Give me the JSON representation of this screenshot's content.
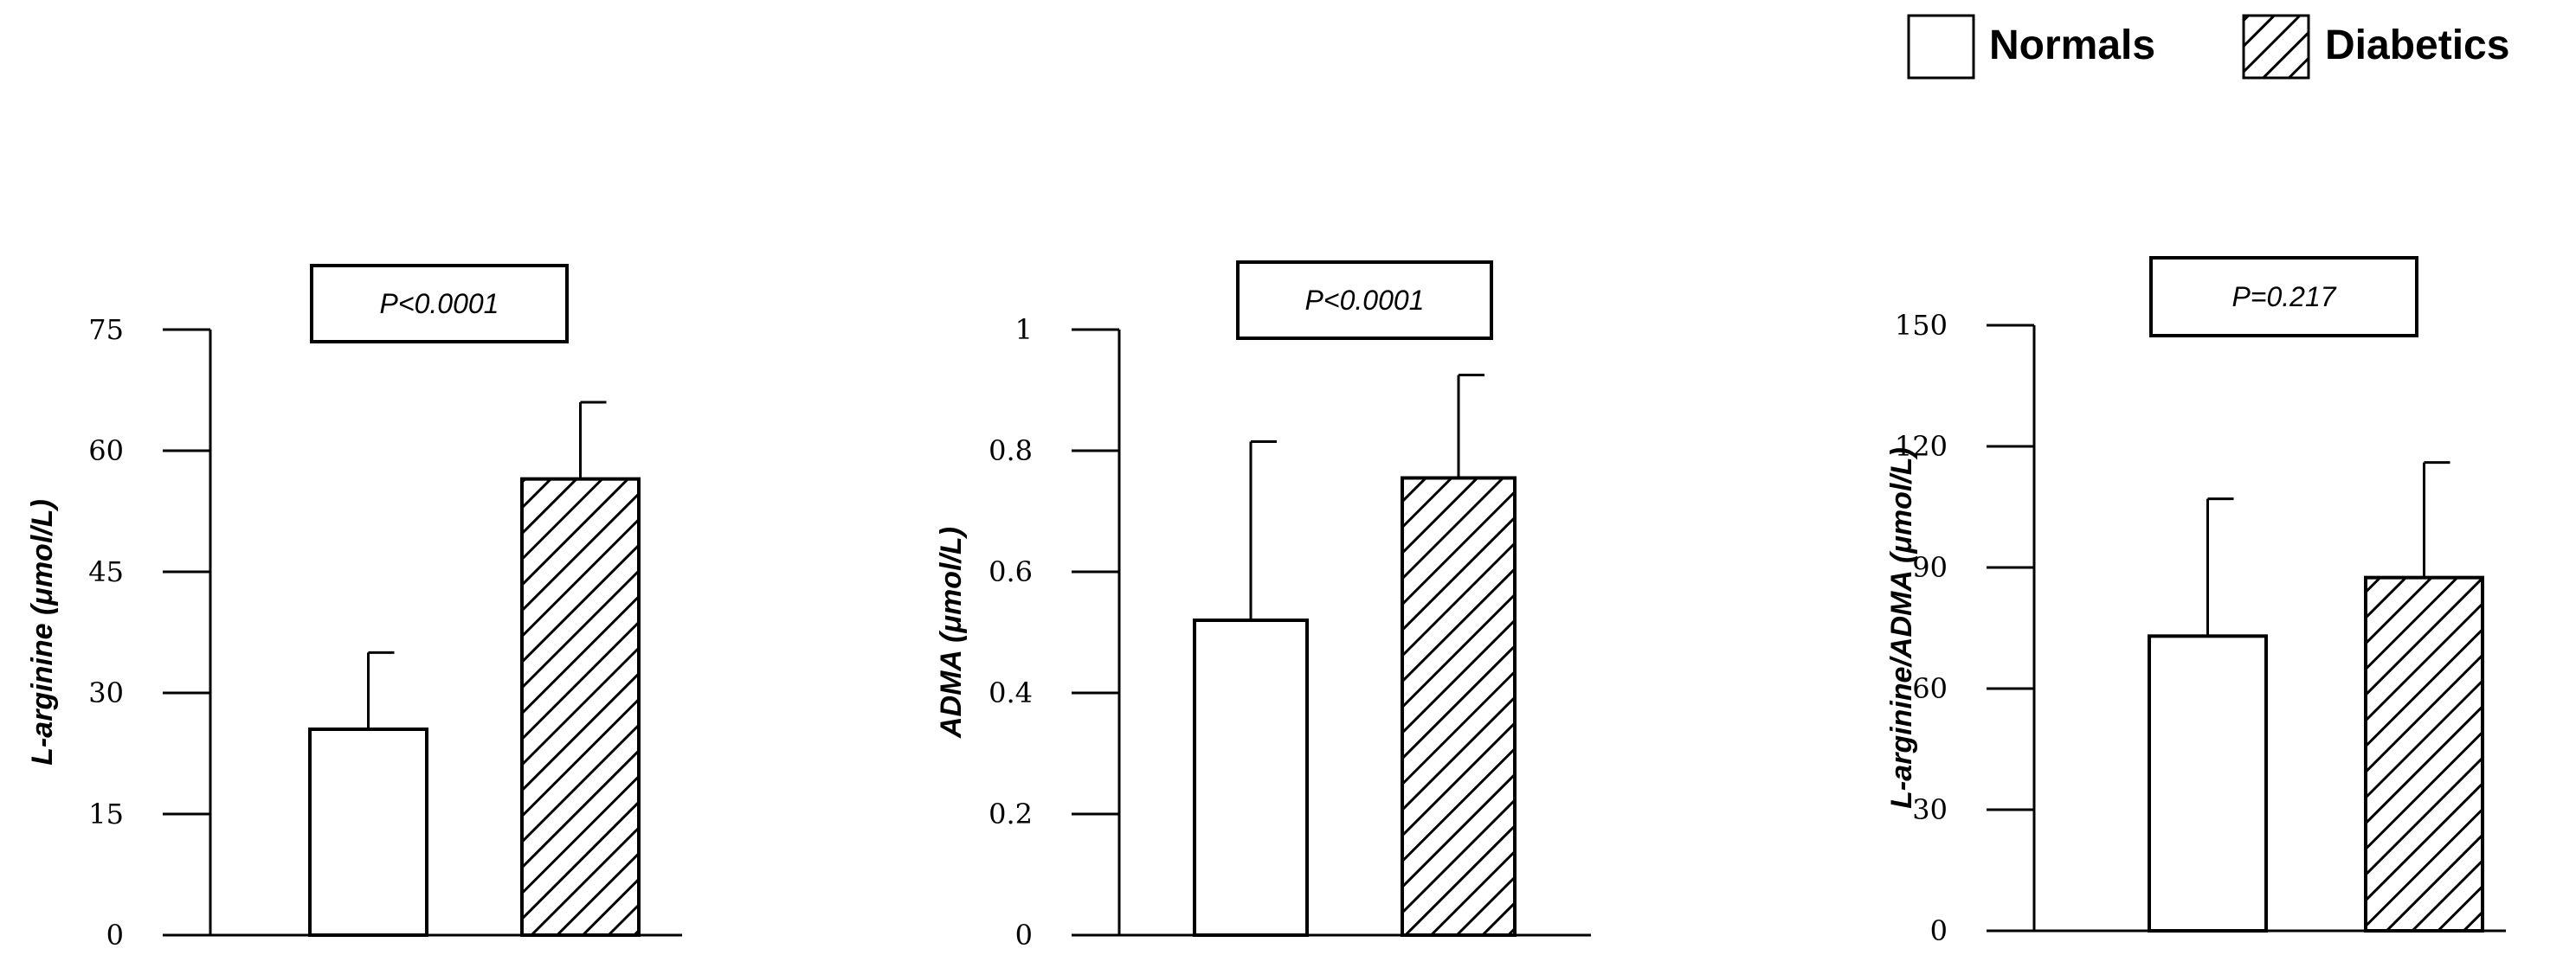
{
  "legend": {
    "items": [
      {
        "label": "Normals",
        "pattern": "empty"
      },
      {
        "label": "Diabetics",
        "pattern": "hatched"
      }
    ]
  },
  "chart_data": [
    {
      "type": "bar",
      "categories": [
        "Normals",
        "Diabetics"
      ],
      "values": [
        25.5,
        56.5
      ],
      "error_upper": [
        35,
        66
      ],
      "ylabel": "L-arginine (μmol/L)",
      "ylim": [
        0,
        75
      ],
      "yticks": [
        0,
        15,
        30,
        45,
        60,
        75
      ],
      "ytick_labels": [
        "0",
        "15",
        "30",
        "45",
        "60",
        "75"
      ],
      "annotation": "P<0.0001",
      "grid": false
    },
    {
      "type": "bar",
      "categories": [
        "Normals",
        "Diabetics"
      ],
      "values": [
        0.52,
        0.755
      ],
      "error_upper": [
        0.815,
        0.925
      ],
      "ylabel": "ADMA (μmol/L)",
      "ylim": [
        0,
        1
      ],
      "yticks": [
        0,
        0.2,
        0.4,
        0.6,
        0.8,
        1
      ],
      "ytick_labels": [
        "0",
        "0.2",
        "0.4",
        "0.6",
        "0.8",
        "1"
      ],
      "annotation": "P<0.0001",
      "grid": false
    },
    {
      "type": "bar",
      "categories": [
        "Normals",
        "Diabetics"
      ],
      "values": [
        73,
        87.5
      ],
      "error_upper": [
        107,
        116
      ],
      "ylabel": "L-arginine/ADMA (μmol/L)",
      "ylim": [
        0,
        150
      ],
      "yticks": [
        0,
        30,
        60,
        90,
        120,
        150
      ],
      "ytick_labels": [
        "0",
        "30",
        "60",
        "90",
        "120",
        "150"
      ],
      "annotation": "P=0.217",
      "grid": false
    }
  ]
}
